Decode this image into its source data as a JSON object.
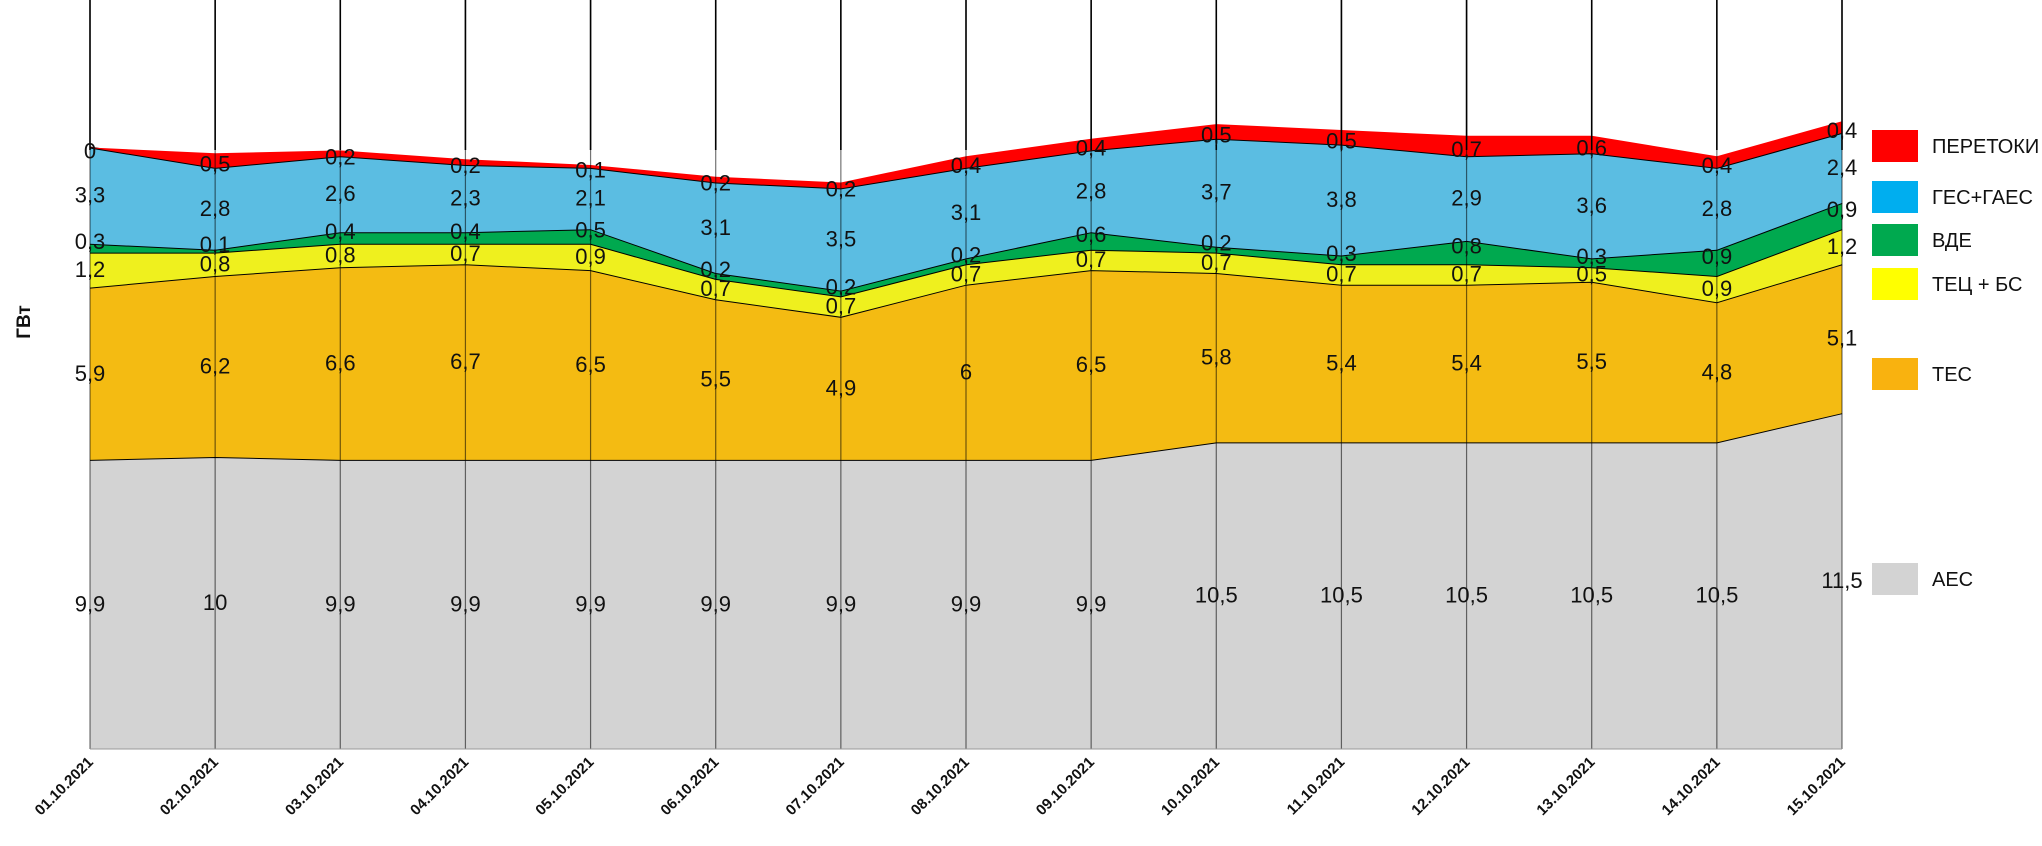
{
  "chart_data": {
    "type": "area",
    "title": "",
    "xlabel": "",
    "ylabel": "ГВт",
    "stacked": true,
    "grid": "vertical lines at each date",
    "legend_position": "right",
    "categories": [
      "01.10.2021",
      "02.10.2021",
      "03.10.2021",
      "04.10.2021",
      "05.10.2021",
      "06.10.2021",
      "07.10.2021",
      "08.10.2021",
      "09.10.2021",
      "10.10.2021",
      "11.10.2021",
      "12.10.2021",
      "13.10.2021",
      "14.10.2021",
      "15.10.2021"
    ],
    "series": [
      {
        "name": "АЕС",
        "color": "#d3d3d3",
        "values": [
          9.9,
          10,
          9.9,
          9.9,
          9.9,
          9.9,
          9.9,
          9.9,
          9.9,
          10.5,
          10.5,
          10.5,
          10.5,
          10.5,
          11.5
        ],
        "labels": [
          "9,9",
          "10",
          "9,9",
          "9,9",
          "9,9",
          "9,9",
          "9,9",
          "9,9",
          "9,9",
          "10,5",
          "10,5",
          "10,5",
          "10,5",
          "10,5",
          "11,5"
        ]
      },
      {
        "name": "ТЕС",
        "color": "#f4bb12",
        "values": [
          5.9,
          6.2,
          6.6,
          6.7,
          6.5,
          5.5,
          4.9,
          6,
          6.5,
          5.8,
          5.4,
          5.4,
          5.5,
          4.8,
          5.1
        ],
        "labels": [
          "5,9",
          "6,2",
          "6,6",
          "6,7",
          "6,5",
          "5,5",
          "4,9",
          "6",
          "6,5",
          "5,8",
          "5,4",
          "5,4",
          "5,5",
          "4,8",
          "5,1"
        ]
      },
      {
        "name": "ТЕЦ + БС",
        "color": "#eff01e",
        "values": [
          1.2,
          0.8,
          0.8,
          0.7,
          0.9,
          0.7,
          0.7,
          0.7,
          0.7,
          0.7,
          0.7,
          0.7,
          0.5,
          0.9,
          1.2
        ],
        "labels": [
          "1,2",
          "0,8",
          "0,8",
          "0,7",
          "0,9",
          "0,7",
          "0,7",
          "0,7",
          "0,7",
          "0,7",
          "0,7",
          "0,7",
          "0,5",
          "0,9",
          "1,2"
        ]
      },
      {
        "name": "ВДЕ",
        "color": "#00a94f",
        "values": [
          0.3,
          0.1,
          0.4,
          0.4,
          0.5,
          0.2,
          0.2,
          0.2,
          0.6,
          0.2,
          0.3,
          0.8,
          0.3,
          0.9,
          0.9
        ],
        "labels": [
          "0,3",
          "0,1",
          "0,4",
          "0,4",
          "0,5",
          "0,2",
          "0,2",
          "0,2",
          "0,6",
          "0,2",
          "0,3",
          "0,8",
          "0,3",
          "0,9",
          "0,9"
        ]
      },
      {
        "name": "ГЕС+ГАЕС",
        "color": "#5bbde2",
        "values": [
          3.3,
          2.8,
          2.6,
          2.3,
          2.1,
          3.1,
          3.5,
          3.1,
          2.8,
          3.7,
          3.8,
          2.9,
          3.6,
          2.8,
          2.4
        ],
        "labels": [
          "3,3",
          "2,8",
          "2,6",
          "2,3",
          "2,1",
          "3,1",
          "3,5",
          "3,1",
          "2,8",
          "3,7",
          "3,8",
          "2,9",
          "3,6",
          "2,8",
          "2,4"
        ]
      },
      {
        "name": "ПЕРЕТОКИ",
        "color": "#ff0000",
        "values": [
          0,
          0.5,
          0.2,
          0.2,
          0.1,
          0.2,
          0.2,
          0.4,
          0.4,
          0.5,
          0.5,
          0.7,
          0.6,
          0.4,
          0.4
        ],
        "labels": [
          "0",
          "0,5",
          "0,2",
          "0,2",
          "0,1",
          "0,2",
          "0,2",
          "0,4",
          "0,4",
          "0,5",
          "0,5",
          "0,7",
          "0,6",
          "0,4",
          "0,4"
        ]
      }
    ],
    "legend": [
      {
        "name": "ПЕРЕТОКИ",
        "color": "#ff0000"
      },
      {
        "name": "ГЕС+ГАЕС",
        "color": "#00aeef"
      },
      {
        "name": "ВДЕ",
        "color": "#00a94f"
      },
      {
        "name": "ТЕЦ + БС",
        "color": "#ffff00"
      },
      {
        "name": "ТЕС",
        "color": "#f9b20f"
      },
      {
        "name": "АЕС",
        "color": "#d3d3d3"
      }
    ]
  }
}
